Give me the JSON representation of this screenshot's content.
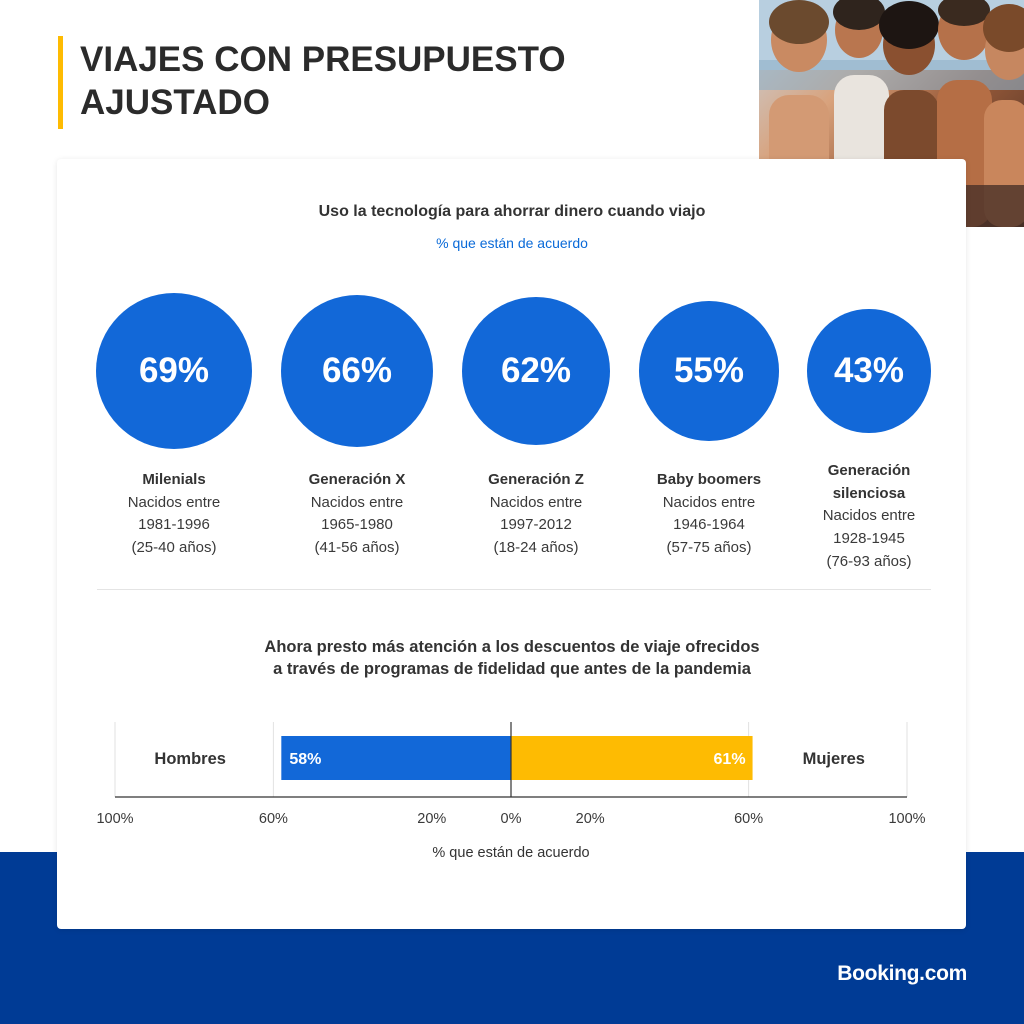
{
  "page": {
    "title": "VIAJES CON PRESUPUESTO AJUSTADO",
    "brand": "Booking.com"
  },
  "colors": {
    "blue": "#1268d8",
    "yellow": "#febb02",
    "dark_blue": "#003b95",
    "accent_text": "#0a6ad8"
  },
  "chart_data": [
    {
      "type": "bubble",
      "title": "Uso la tecnología para ahorrar dinero cuando viajo",
      "subtitle": "% que están de acuerdo",
      "categories": [
        {
          "name": "Milenials",
          "line1": "Nacidos entre",
          "line2": "1981-1996",
          "line3": "(25-40 años)",
          "label": "69%",
          "value": 69
        },
        {
          "name": "Generación X",
          "line1": "Nacidos entre",
          "line2": "1965-1980",
          "line3": "(41-56 años)",
          "label": "66%",
          "value": 66
        },
        {
          "name": "Generación Z",
          "line1": "Nacidos entre",
          "line2": "1997-2012",
          "line3": "(18-24 años)",
          "label": "62%",
          "value": 62
        },
        {
          "name": "Baby boomers",
          "line1": "Nacidos entre",
          "line2": "1946-1964",
          "line3": "(57-75 años)",
          "label": "55%",
          "value": 55
        },
        {
          "name": "Generación silenciosa",
          "line1": "Nacidos entre",
          "line2": "1928-1945",
          "line3": "(76-93 años)",
          "label": "43%",
          "value": 43
        }
      ]
    },
    {
      "type": "bar",
      "orientation": "diverging-horizontal",
      "title_line1": "Ahora presto más atención a los descuentos de viaje ofrecidos",
      "title_line2": "a través de programas de fidelidad que antes de la pandemia",
      "xlabel": "% que están de acuerdo",
      "xlim": [
        -100,
        100
      ],
      "ticks": [
        {
          "value": -100,
          "label": "100%"
        },
        {
          "value": -60,
          "label": "60%"
        },
        {
          "value": -20,
          "label": "20%"
        },
        {
          "value": 0,
          "label": "0%"
        },
        {
          "value": 20,
          "label": "20%"
        },
        {
          "value": 60,
          "label": "60%"
        },
        {
          "value": 100,
          "label": "100%"
        }
      ],
      "series": [
        {
          "name": "Hombres",
          "value": 58,
          "label": "58%",
          "side": "left",
          "color": "#1268d8"
        },
        {
          "name": "Mujeres",
          "value": 61,
          "label": "61%",
          "side": "right",
          "color": "#febb02"
        }
      ]
    }
  ]
}
